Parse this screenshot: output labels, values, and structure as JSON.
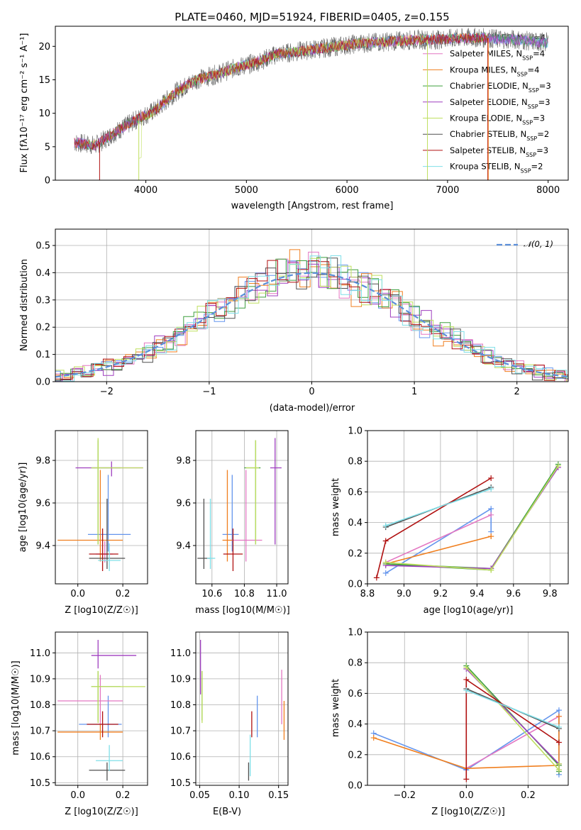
{
  "title": "PLATE=0460, MJD=51924, FIBERID=0405, z=0.155",
  "colors": [
    "#6495ed",
    "#e377c2",
    "#f07f1f",
    "#3f9f3f",
    "#9f3fbf",
    "#bfdf5f",
    "#505050",
    "#b01010",
    "#7fdfe8"
  ],
  "legend_colors": [
    "#6495ed",
    "#e377c2",
    "#f07f1f",
    "#3f9f3f",
    "#9f3fbf",
    "#bfdf5f",
    "#505050",
    "#b01010",
    "#7fdfe8"
  ],
  "spectrum_legend": [
    "Chabrier MILES, N_SSP=4",
    "Salpeter MILES, N_SSP=4",
    "Kroupa MILES, N_SSP=4",
    "Chabrier ELODIE, N_SSP=3",
    "Salpeter ELODIE, N_SSP=3",
    "Kroupa ELODIE, N_SSP=3",
    "Chabrier STELIB, N_SSP=2",
    "Salpeter STELIB, N_SSP=3",
    "Kroupa STELIB, N_SSP=2"
  ],
  "chart_data": [
    {
      "id": "spectrum",
      "type": "line",
      "xlabel": "wavelength [Angstrom, rest frame]",
      "ylabel": "Flux [fλ10⁻¹⁷ erg cm⁻² s⁻¹ A⁻¹]",
      "xlim": [
        3100,
        8200
      ],
      "ylim": [
        0,
        23
      ],
      "xticks": [
        4000,
        5000,
        6000,
        7000,
        8000
      ],
      "yticks": [
        0,
        5,
        10,
        15,
        20
      ],
      "continuum": {
        "x": [
          3300,
          3500,
          3700,
          3900,
          4100,
          4300,
          4500,
          4700,
          4900,
          5100,
          5300,
          5500,
          5700,
          5900,
          6100,
          6300,
          6500,
          6700,
          6900,
          7100,
          7300,
          7500,
          7700,
          7900
        ],
        "y": [
          5.6,
          5.2,
          7.2,
          9.0,
          10.5,
          13.2,
          15.0,
          15.8,
          16.8,
          17.6,
          18.8,
          19.2,
          19.6,
          20.0,
          20.4,
          20.6,
          20.8,
          21.0,
          21.0,
          21.2,
          21.3,
          21.1,
          21.0,
          20.6
        ]
      },
      "grid": false
    },
    {
      "id": "residuals",
      "type": "histogram",
      "xlabel": "(data-model)/error",
      "ylabel": "Normed distribution",
      "xlim": [
        -2.5,
        2.5
      ],
      "ylim": [
        0,
        0.56
      ],
      "xticks": [
        -2,
        -1,
        0,
        1,
        2
      ],
      "yticks": [
        0.0,
        0.1,
        0.2,
        0.3,
        0.4,
        0.5
      ],
      "bin_width": 0.1,
      "reference_curve": {
        "name": "𝒩(0, 1)",
        "mean": 0,
        "sigma": 1,
        "color": "#5b8fd9"
      },
      "grid": true
    },
    {
      "id": "age-vs-Z",
      "type": "errorbar",
      "xlabel": "Z [log10(Z/Z☉)]",
      "ylabel": "age  [log10(age/yr)]",
      "xlim": [
        -0.1,
        0.31
      ],
      "ylim": [
        9.22,
        9.94
      ],
      "xticks": [
        0.0,
        0.2
      ],
      "yticks": [
        9.4,
        9.6,
        9.8
      ],
      "points": [
        {
          "x": 0.135,
          "y": 9.452,
          "xerr": [
            0.09,
            0.1
          ],
          "yerr": [
            0.08,
            0.28
          ]
        },
        {
          "x": 0.12,
          "y": 9.36,
          "xerr": [
            0.04,
            0.035
          ],
          "yerr": [
            0.04,
            0.06
          ]
        },
        {
          "x": 0.1,
          "y": 9.425,
          "xerr": [
            0.19,
            0.1
          ],
          "yerr": [
            0.1,
            0.33
          ]
        },
        {
          "x": 0.09,
          "y": 9.765,
          "xerr": [
            0.03,
            0.1
          ],
          "yerr": [
            0.36,
            0.13
          ]
        },
        {
          "x": 0.15,
          "y": 9.765,
          "xerr": [
            0.16,
            0.14
          ],
          "yerr": [
            0.04,
            0.03
          ]
        },
        {
          "x": 0.09,
          "y": 9.765,
          "xerr": [
            0.03,
            0.2
          ],
          "yerr": [
            0.36,
            0.14
          ]
        },
        {
          "x": 0.13,
          "y": 9.34,
          "xerr": [
            0.08,
            0.08
          ],
          "yerr": [
            0.05,
            0.28
          ]
        },
        {
          "x": 0.11,
          "y": 9.36,
          "xerr": [
            0.06,
            0.07
          ],
          "yerr": [
            0.08,
            0.12
          ]
        },
        {
          "x": 0.14,
          "y": 9.33,
          "xerr": [
            0.05,
            0.05
          ],
          "yerr": [
            0.05,
            0.08
          ]
        }
      ]
    },
    {
      "id": "age-vs-mass",
      "type": "errorbar",
      "xlabel": "mass [log10(M/M☉)]",
      "ylabel": "",
      "xlim": [
        10.5,
        11.07
      ],
      "ylim": [
        9.22,
        9.94
      ],
      "xticks": [
        10.6,
        10.8,
        11.0
      ],
      "yticks": [
        9.4,
        9.6,
        9.8
      ],
      "points": [
        {
          "x": 10.725,
          "y": 9.452,
          "xerr": [
            0.06,
            0.04
          ],
          "yerr": [
            0.08,
            0.28
          ]
        },
        {
          "x": 10.81,
          "y": 9.425,
          "xerr": [
            0.09,
            0.1
          ],
          "yerr": [
            0.1,
            0.33
          ]
        },
        {
          "x": 10.695,
          "y": 9.425,
          "xerr": [
            0.03,
            0.03
          ],
          "yerr": [
            0.1,
            0.33
          ]
        },
        {
          "x": 10.87,
          "y": 9.765,
          "xerr": [
            0.07,
            0.03
          ],
          "yerr": [
            0.36,
            0.13
          ]
        },
        {
          "x": 10.99,
          "y": 9.765,
          "xerr": [
            0.03,
            0.04
          ],
          "yerr": [
            0.36,
            0.14
          ]
        },
        {
          "x": 10.87,
          "y": 9.765,
          "xerr": [
            0.06,
            0.02
          ],
          "yerr": [
            0.36,
            0.13
          ]
        },
        {
          "x": 10.55,
          "y": 9.34,
          "xerr": [
            0.04,
            0.04
          ],
          "yerr": [
            0.05,
            0.28
          ]
        },
        {
          "x": 10.73,
          "y": 9.36,
          "xerr": [
            0.06,
            0.06
          ],
          "yerr": [
            0.08,
            0.12
          ]
        },
        {
          "x": 10.59,
          "y": 9.34,
          "xerr": [
            0.02,
            0.03
          ],
          "yerr": [
            0.05,
            0.28
          ]
        }
      ]
    },
    {
      "id": "weight-vs-age",
      "type": "line",
      "xlabel": "age  [log10(age/yr)]",
      "ylabel": "mass weight",
      "xlim": [
        8.8,
        9.9
      ],
      "ylim": [
        0,
        1.0
      ],
      "xticks": [
        8.8,
        9.0,
        9.2,
        9.4,
        9.6,
        9.8
      ],
      "yticks": [
        0.0,
        0.2,
        0.4,
        0.6,
        0.8,
        1.0
      ],
      "series": [
        {
          "x": [
            8.9,
            9.477,
            9.477
          ],
          "y": [
            0.07,
            0.49,
            0.34
          ]
        },
        {
          "x": [
            8.9,
            9.477
          ],
          "y": [
            0.14,
            0.45
          ]
        },
        {
          "x": [
            8.9,
            9.477,
            9.477
          ],
          "y": [
            0.13,
            0.31,
            0.31
          ]
        },
        {
          "x": [
            9.477,
            8.9,
            9.477,
            9.845
          ],
          "y": [
            0.09,
            0.13,
            0.1,
            0.78
          ]
        },
        {
          "x": [
            8.9,
            9.477,
            9.845
          ],
          "y": [
            0.12,
            0.1,
            0.76
          ]
        },
        {
          "x": [
            9.477,
            8.9,
            9.477,
            9.845
          ],
          "y": [
            0.09,
            0.14,
            0.09,
            0.77
          ]
        },
        {
          "x": [
            8.9,
            9.477
          ],
          "y": [
            0.37,
            0.63
          ]
        },
        {
          "x": [
            8.85,
            8.9,
            9.477
          ],
          "y": [
            0.04,
            0.28,
            0.69
          ]
        },
        {
          "x": [
            8.9,
            9.477
          ],
          "y": [
            0.38,
            0.62
          ]
        }
      ],
      "grid": true
    },
    {
      "id": "mass-vs-Z",
      "type": "errorbar",
      "xlabel": "Z [log10(Z/Z☉)]",
      "ylabel": "mass [log10(M/M☉)]",
      "xlim": [
        -0.1,
        0.31
      ],
      "ylim": [
        10.49,
        11.08
      ],
      "xticks": [
        0.0,
        0.2
      ],
      "yticks": [
        10.5,
        10.6,
        10.7,
        10.8,
        10.9,
        11.0
      ],
      "points": [
        {
          "x": 0.135,
          "y": 10.725,
          "xerr": [
            0.13,
            0.06
          ],
          "yerr": [
            0.05,
            0.11
          ]
        },
        {
          "x": 0.1,
          "y": 10.815,
          "xerr": [
            0.19,
            0.1
          ],
          "yerr": [
            0.09,
            0.1
          ]
        },
        {
          "x": 0.1,
          "y": 10.695,
          "xerr": [
            0.19,
            0.1
          ],
          "yerr": [
            0.03,
            0.03
          ]
        },
        {
          "x": 0.09,
          "y": 10.87,
          "xerr": [
            0.03,
            0.1
          ],
          "yerr": [
            0.13,
            0.06
          ]
        },
        {
          "x": 0.09,
          "y": 10.99,
          "xerr": [
            0.03,
            0.17
          ],
          "yerr": [
            0.05,
            0.06
          ]
        },
        {
          "x": 0.09,
          "y": 10.87,
          "xerr": [
            0.03,
            0.21
          ],
          "yerr": [
            0.14,
            0.06
          ]
        },
        {
          "x": 0.13,
          "y": 10.548,
          "xerr": [
            0.08,
            0.08
          ],
          "yerr": [
            0.04,
            0.03
          ]
        },
        {
          "x": 0.11,
          "y": 10.725,
          "xerr": [
            0.07,
            0.07
          ],
          "yerr": [
            0.05,
            0.05
          ]
        },
        {
          "x": 0.14,
          "y": 10.585,
          "xerr": [
            0.06,
            0.06
          ],
          "yerr": [
            0.04,
            0.06
          ]
        }
      ]
    },
    {
      "id": "mass-vs-EBV",
      "type": "errorbar",
      "xlabel": "E(B-V)",
      "ylabel": "",
      "xlim": [
        0.045,
        0.162
      ],
      "ylim": [
        10.49,
        11.08
      ],
      "xticks": [
        0.05,
        0.1,
        0.15
      ],
      "yticks": [
        10.5,
        10.6,
        10.7,
        10.8,
        10.9,
        11.0
      ],
      "points": [
        {
          "x": 0.123,
          "y": 10.725,
          "xerr": [
            0,
            0
          ],
          "yerr": [
            0.05,
            0.11
          ]
        },
        {
          "x": 0.154,
          "y": 10.815,
          "xerr": [
            0,
            0
          ],
          "yerr": [
            0.09,
            0.12
          ]
        },
        {
          "x": 0.157,
          "y": 10.695,
          "xerr": [
            0,
            0
          ],
          "yerr": [
            0.03,
            0.12
          ]
        },
        {
          "x": 0.053,
          "y": 10.87,
          "xerr": [
            0,
            0
          ],
          "yerr": [
            0.13,
            0.06
          ]
        },
        {
          "x": 0.051,
          "y": 10.99,
          "xerr": [
            0,
            0
          ],
          "yerr": [
            0.15,
            0.06
          ]
        },
        {
          "x": 0.053,
          "y": 10.87,
          "xerr": [
            0,
            0
          ],
          "yerr": [
            0.14,
            0.06
          ]
        },
        {
          "x": 0.112,
          "y": 10.548,
          "xerr": [
            0,
            0
          ],
          "yerr": [
            0.04,
            0.03
          ]
        },
        {
          "x": 0.116,
          "y": 10.725,
          "xerr": [
            0,
            0
          ],
          "yerr": [
            0.05,
            0.05
          ]
        },
        {
          "x": 0.114,
          "y": 10.585,
          "xerr": [
            0,
            0
          ],
          "yerr": [
            0.06,
            0.1
          ]
        }
      ]
    },
    {
      "id": "weight-vs-Z",
      "type": "line",
      "xlabel": "Z [log10(Z/Z☉)]",
      "ylabel": "mass weight",
      "xlim": [
        -0.32,
        0.33
      ],
      "ylim": [
        0,
        1.0
      ],
      "xticks": [
        -0.2,
        0.0,
        0.2
      ],
      "yticks": [
        0.0,
        0.2,
        0.4,
        0.6,
        0.8,
        1.0
      ],
      "series": [
        {
          "x": [
            -0.3,
            0.0,
            0.3,
            0.3
          ],
          "y": [
            0.34,
            0.1,
            0.49,
            0.07
          ]
        },
        {
          "x": [
            0.0,
            0.3
          ],
          "y": [
            0.11,
            0.45
          ]
        },
        {
          "x": [
            -0.3,
            0.0,
            0.3,
            0.3
          ],
          "y": [
            0.31,
            0.11,
            0.13,
            0.45
          ]
        },
        {
          "x": [
            0.0,
            0.3,
            0.3
          ],
          "y": [
            0.78,
            0.13,
            0.09
          ]
        },
        {
          "x": [
            0.0,
            0.3,
            0.3
          ],
          "y": [
            0.76,
            0.14,
            0.1
          ]
        },
        {
          "x": [
            0.0,
            0.3,
            0.3
          ],
          "y": [
            0.77,
            0.1,
            0.14
          ]
        },
        {
          "x": [
            0.0,
            0.3
          ],
          "y": [
            0.63,
            0.37
          ]
        },
        {
          "x": [
            0.0,
            0.0,
            0.3
          ],
          "y": [
            0.04,
            0.69,
            0.28
          ]
        },
        {
          "x": [
            0.0,
            0.3
          ],
          "y": [
            0.62,
            0.38
          ]
        }
      ],
      "grid": true
    }
  ]
}
